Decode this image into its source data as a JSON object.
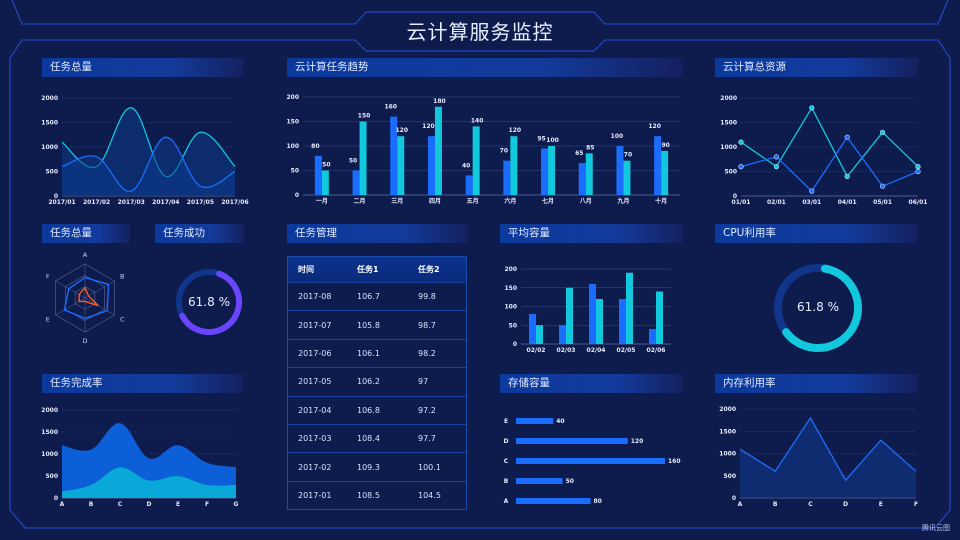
{
  "header": {
    "title": "云计算服务监控"
  },
  "colors": {
    "background": "#0e1b4d",
    "blue": "#1a6dff",
    "cyan": "#12c8dc",
    "purple": "#6a45ff",
    "orange": "#ff5a2a",
    "frame": "#2a4fd6"
  },
  "panels": {
    "total_tasks": "任务总量",
    "trend": "云计算任务趋势",
    "resources": "云计算总资源",
    "total_tasks_radar": "任务总量",
    "task_success": "任务成功",
    "task_mgmt": "任务管理",
    "avg_capacity": "平均容量",
    "cpu": "CPU利用率",
    "completion": "任务完成率",
    "storage": "存储容量",
    "memory": "内存利用率"
  },
  "task_success": {
    "value": 61.8,
    "label": "61.8 %"
  },
  "cpu": {
    "value": 61.8,
    "label": "61.8 %"
  },
  "table": {
    "headers": [
      "时间",
      "任务1",
      "任务2"
    ],
    "rows": [
      [
        "2017-08",
        "106.7",
        "99.8"
      ],
      [
        "2017-07",
        "105.8",
        "98.7"
      ],
      [
        "2017-06",
        "106.1",
        "98.2"
      ],
      [
        "2017-05",
        "106.2",
        "97"
      ],
      [
        "2017-04",
        "106.8",
        "97.2"
      ],
      [
        "2017-03",
        "108.4",
        "97.7"
      ],
      [
        "2017-02",
        "109.3",
        "100.1"
      ],
      [
        "2017-01",
        "108.5",
        "104.5"
      ]
    ]
  },
  "watermark": "腾讯云图",
  "chart_data": [
    {
      "id": "total_tasks",
      "type": "area",
      "smooth": true,
      "categories": [
        "2017/01",
        "2017/02",
        "2017/03",
        "2017/04",
        "2017/05",
        "2017/06"
      ],
      "yticks": [
        "0",
        "500",
        "1000",
        "1500",
        "2000"
      ],
      "ylim": [
        0,
        2000
      ],
      "grid": true,
      "series": [
        {
          "color": "#12c8dc",
          "values": [
            1100,
            600,
            1800,
            400,
            1300,
            600
          ]
        },
        {
          "color": "#1a6dff",
          "values": [
            600,
            800,
            100,
            1200,
            200,
            500
          ]
        }
      ]
    },
    {
      "id": "trend",
      "type": "bar",
      "categories": [
        "一月",
        "二月",
        "三月",
        "四月",
        "五月",
        "六月",
        "七月",
        "八月",
        "九月",
        "十月"
      ],
      "yticks": [
        "0",
        "50",
        "100",
        "150",
        "200"
      ],
      "ylim": [
        0,
        200
      ],
      "grid": true,
      "series": [
        {
          "color": "#1a6dff",
          "values": [
            80,
            50,
            160,
            120,
            40,
            70,
            95,
            65,
            100,
            120
          ]
        },
        {
          "color": "#12c8dc",
          "values": [
            50,
            150,
            120,
            180,
            140,
            120,
            100,
            85,
            70,
            90
          ]
        }
      ]
    },
    {
      "id": "resources",
      "type": "line",
      "categories": [
        "01/01",
        "02/01",
        "03/01",
        "04/01",
        "05/01",
        "06/01"
      ],
      "yticks": [
        "0",
        "500",
        "1000",
        "1500",
        "2000"
      ],
      "ylim": [
        0,
        2000
      ],
      "grid": true,
      "series": [
        {
          "color": "#12c8dc",
          "values": [
            1100,
            600,
            1800,
            400,
            1300,
            600
          ]
        },
        {
          "color": "#1a6dff",
          "values": [
            600,
            800,
            100,
            1200,
            200,
            500
          ]
        }
      ]
    },
    {
      "id": "radar",
      "type": "radar",
      "indicators": [
        "A",
        "B",
        "C",
        "D",
        "E",
        "F"
      ],
      "max": 100,
      "series": [
        {
          "color": "#1a6dff",
          "values": [
            60,
            80,
            75,
            60,
            70,
            55
          ]
        },
        {
          "color": "#ff5a2a",
          "values": [
            30,
            12,
            45,
            10,
            20,
            20
          ]
        }
      ]
    },
    {
      "id": "avg_capacity",
      "type": "bar",
      "categories": [
        "02/02",
        "02/03",
        "02/04",
        "02/05",
        "02/06"
      ],
      "yticks": [
        "0",
        "50",
        "100",
        "150",
        "200"
      ],
      "ylim": [
        0,
        200
      ],
      "grid": true,
      "series": [
        {
          "color": "#1a6dff",
          "values": [
            80,
            50,
            160,
            120,
            40
          ]
        },
        {
          "color": "#12c8dc",
          "values": [
            50,
            150,
            120,
            190,
            140
          ]
        }
      ]
    },
    {
      "id": "completion",
      "type": "area",
      "stacked": true,
      "smooth": true,
      "categories": [
        "A",
        "B",
        "C",
        "D",
        "E",
        "F",
        "G"
      ],
      "yticks": [
        "0",
        "500",
        "1000",
        "1500",
        "2000"
      ],
      "ylim": [
        0,
        2000
      ],
      "grid": true,
      "series": [
        {
          "color": "#0aa8d8",
          "values": [
            150,
            300,
            700,
            400,
            500,
            300,
            300
          ]
        },
        {
          "color": "#0d5fd8",
          "values": [
            1050,
            800,
            1000,
            500,
            700,
            500,
            400
          ]
        }
      ]
    },
    {
      "id": "storage",
      "type": "bar",
      "orientation": "horizontal",
      "categories": [
        "A",
        "B",
        "C",
        "D",
        "E"
      ],
      "values": [
        80,
        50,
        160,
        120,
        40
      ],
      "color": "#1a6dff"
    },
    {
      "id": "memory",
      "type": "area",
      "categories": [
        "A",
        "B",
        "C",
        "D",
        "E",
        "F"
      ],
      "yticks": [
        "0",
        "500",
        "1000",
        "1500",
        "2000"
      ],
      "ylim": [
        0,
        2000
      ],
      "grid": true,
      "series": [
        {
          "color": "#1a6dff",
          "values": [
            1100,
            600,
            1800,
            400,
            1300,
            600
          ]
        }
      ]
    }
  ]
}
